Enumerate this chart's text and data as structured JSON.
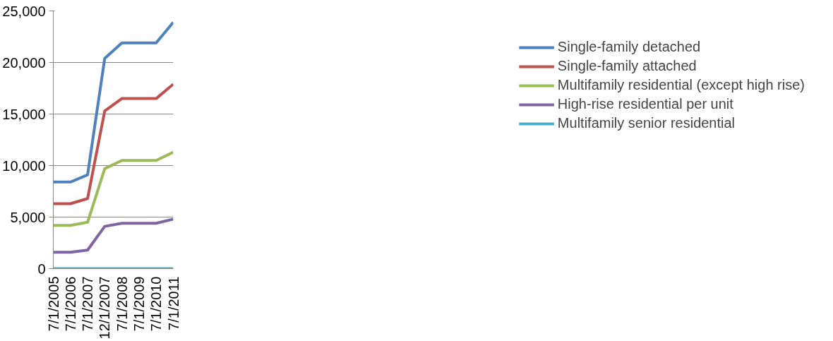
{
  "chart_data": {
    "type": "line",
    "categories": [
      "7/1/2005",
      "7/1/2006",
      "7/1/2007",
      "12/1/2007",
      "7/1/2008",
      "7/1/2009",
      "7/1/2010",
      "7/1/2011"
    ],
    "series": [
      {
        "name": "Single-family detached",
        "color": "#4f81bd",
        "values": [
          8400,
          8400,
          9100,
          20400,
          21900,
          21900,
          21900,
          23900
        ]
      },
      {
        "name": "Single-family attached",
        "color": "#c0504d",
        "values": [
          6300,
          6300,
          6800,
          15300,
          16500,
          16500,
          16500,
          17900
        ]
      },
      {
        "name": "Multifamily residential (except high rise)",
        "color": "#9bbb59",
        "values": [
          4200,
          4200,
          4500,
          9700,
          10500,
          10500,
          10500,
          11300
        ]
      },
      {
        "name": "High-rise residential per unit",
        "color": "#8064a2",
        "values": [
          1600,
          1600,
          1800,
          4100,
          4400,
          4400,
          4400,
          4800
        ]
      },
      {
        "name": "Multifamily senior residential",
        "color": "#4bacc6",
        "values": [
          0,
          0,
          0,
          0,
          0,
          0,
          0,
          0
        ]
      }
    ],
    "ylim": [
      0,
      25000
    ],
    "yticks": [
      {
        "value": 0,
        "label": "0"
      },
      {
        "value": 5000,
        "label": "5,000"
      },
      {
        "value": 10000,
        "label": "10,000"
      },
      {
        "value": 15000,
        "label": "15,000"
      },
      {
        "value": 20000,
        "label": "20,000"
      },
      {
        "value": 25000,
        "label": "25,000"
      }
    ],
    "grid": "y",
    "legend": "right",
    "marker": "none",
    "line_style": "solid"
  }
}
